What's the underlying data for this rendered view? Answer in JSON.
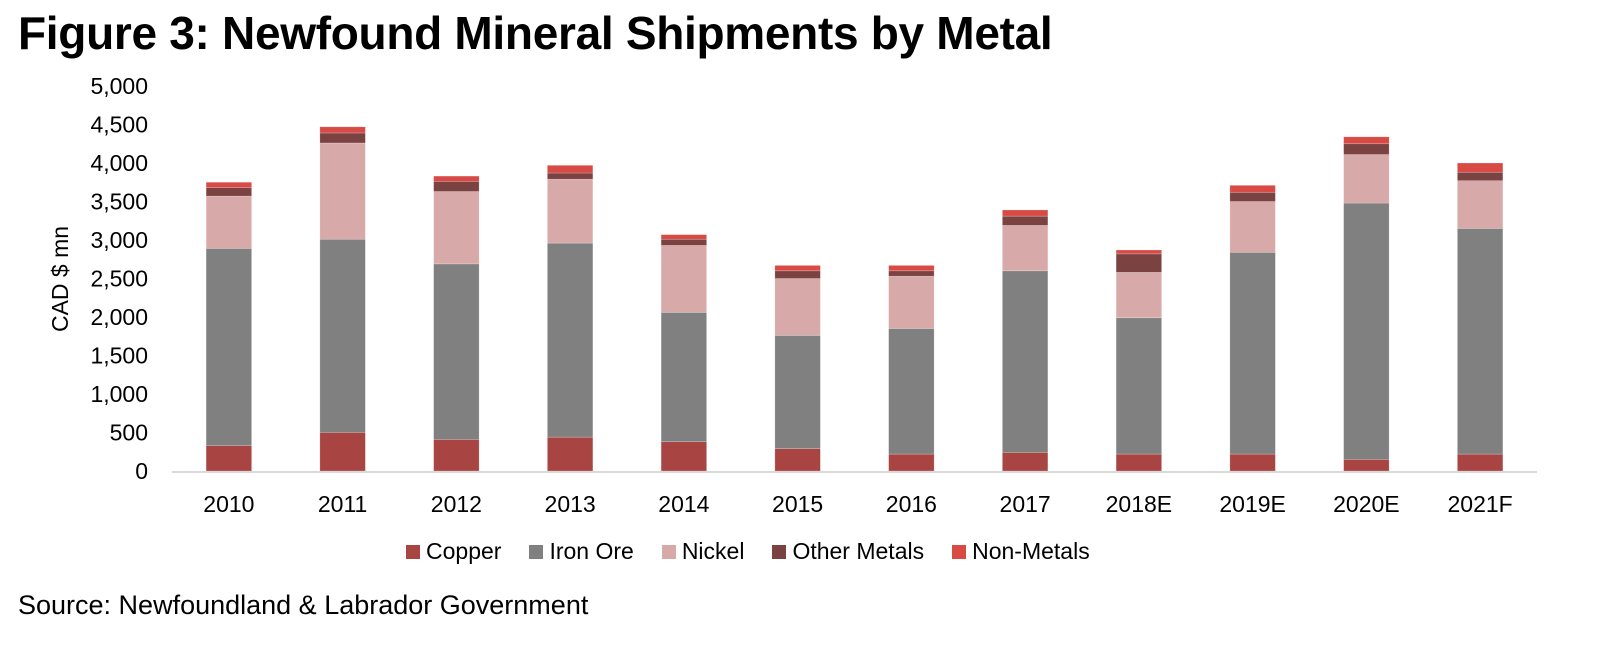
{
  "title": "Figure 3: Newfound Mineral Shipments by Metal",
  "source": "Source: Newfoundland & Labrador Government",
  "chart_data": {
    "type": "bar",
    "stacked": true,
    "title": "Figure 3: Newfound Mineral Shipments by Metal",
    "xlabel": "",
    "ylabel": "CAD $ mn",
    "ylim": [
      0,
      5000
    ],
    "yticks": [
      0,
      500,
      1000,
      1500,
      2000,
      2500,
      3000,
      3500,
      4000,
      4500,
      5000
    ],
    "ytick_labels": [
      "0",
      "500",
      "1,000",
      "1,500",
      "2,000",
      "2,500",
      "3,000",
      "3,500",
      "4,000",
      "4,500",
      "5,000"
    ],
    "grid": false,
    "legend_position": "bottom",
    "categories": [
      "2010",
      "2011",
      "2012",
      "2013",
      "2014",
      "2015",
      "2016",
      "2017",
      "2018E",
      "2019E",
      "2020E",
      "2021F"
    ],
    "series": [
      {
        "name": "Copper",
        "color": "#A84543",
        "values": [
          330,
          500,
          410,
          440,
          380,
          290,
          220,
          240,
          220,
          220,
          150,
          220
        ]
      },
      {
        "name": "Iron Ore",
        "color": "#808080",
        "values": [
          2560,
          2510,
          2280,
          2520,
          1680,
          1470,
          1630,
          2360,
          1770,
          2620,
          3330,
          2930
        ]
      },
      {
        "name": "Nickel",
        "color": "#D8A9A9",
        "values": [
          680,
          1250,
          940,
          830,
          870,
          740,
          680,
          590,
          590,
          660,
          630,
          620
        ]
      },
      {
        "name": "Other Metals",
        "color": "#7B4242",
        "values": [
          110,
          130,
          130,
          80,
          80,
          100,
          70,
          120,
          240,
          120,
          140,
          110
        ]
      },
      {
        "name": "Non-Metals",
        "color": "#D94A45",
        "values": [
          70,
          80,
          70,
          100,
          60,
          70,
          70,
          80,
          50,
          90,
          90,
          120
        ]
      }
    ]
  }
}
